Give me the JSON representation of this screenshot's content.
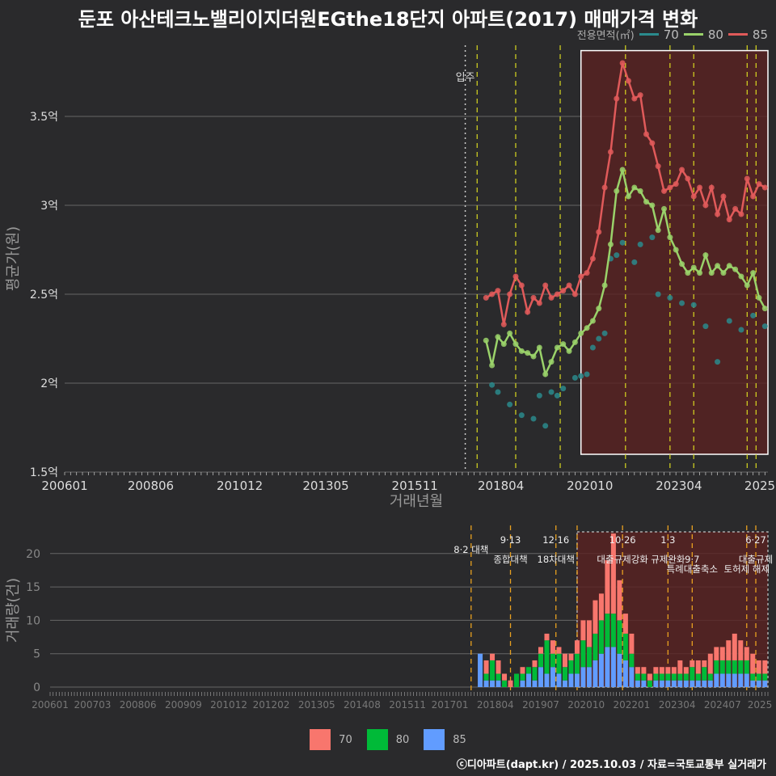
{
  "title": "둔포 아산테크노밸리이지더원EGthe18단지 아파트(2017) 매매가격 변화",
  "credit": "ⓒ디아파트(dapt.kr) / 2025.10.03 / 자료=국토교통부 실거래가",
  "colors": {
    "s70": "#2a8a8c",
    "s80": "#9ad26a",
    "s85": "#e05a5a",
    "b70": "#f8766d",
    "b80": "#00ba38",
    "b85": "#619cff",
    "highlight": "#5a2222",
    "policy": "#d8d820",
    "policy_bottom": "#e8a020"
  },
  "chart_data": [
    {
      "type": "line",
      "title": "둔포 아산테크노밸리이지더원EGthe18단지 아파트(2017) 매매가격 변화",
      "xlabel": "거래년월",
      "ylabel": "평균가(원)",
      "legend_title": "전용면적(㎡)",
      "ylim": [
        1.5,
        3.9
      ],
      "x_ticks": [
        "200601",
        "200806",
        "201012",
        "201305",
        "201511",
        "201804",
        "202010",
        "202304",
        "2025"
      ],
      "y_ticks": [
        {
          "v": 1.5,
          "label": "1.5억"
        },
        {
          "v": 2.0,
          "label": "2억"
        },
        {
          "v": 2.5,
          "label": "2.5억"
        },
        {
          "v": 3.0,
          "label": "3억"
        },
        {
          "v": 3.5,
          "label": "3.5억"
        }
      ],
      "annotation": "입주",
      "series": [
        {
          "name": "70",
          "points": [
            [
              "2018-01",
              1.99
            ],
            [
              "2018-03",
              1.95
            ],
            [
              "2018-07",
              1.88
            ],
            [
              "2018-11",
              1.82
            ],
            [
              "2019-03",
              1.8
            ],
            [
              "2019-05",
              1.93
            ],
            [
              "2019-07",
              1.76
            ],
            [
              "2019-09",
              1.95
            ],
            [
              "2019-11",
              1.93
            ],
            [
              "2020-01",
              1.97
            ],
            [
              "2020-05",
              2.03
            ],
            [
              "2020-07",
              2.04
            ],
            [
              "2020-09",
              2.05
            ],
            [
              "2020-11",
              2.2
            ],
            [
              "2021-01",
              2.25
            ],
            [
              "2021-03",
              2.28
            ],
            [
              "2021-05",
              2.7
            ],
            [
              "2021-07",
              2.72
            ],
            [
              "2021-09",
              2.79
            ],
            [
              "2022-01",
              2.68
            ],
            [
              "2022-03",
              2.78
            ],
            [
              "2022-07",
              2.82
            ],
            [
              "2022-09",
              2.5
            ],
            [
              "2023-01",
              2.48
            ],
            [
              "2023-05",
              2.45
            ],
            [
              "2023-09",
              2.44
            ],
            [
              "2024-01",
              2.32
            ],
            [
              "2024-05",
              2.12
            ],
            [
              "2024-09",
              2.35
            ],
            [
              "2025-01",
              2.3
            ],
            [
              "2025-05",
              2.38
            ],
            [
              "2025-09",
              2.32
            ]
          ]
        },
        {
          "name": "80",
          "points": [
            [
              "2017-11",
              2.24
            ],
            [
              "2018-01",
              2.1
            ],
            [
              "2018-03",
              2.26
            ],
            [
              "2018-05",
              2.22
            ],
            [
              "2018-07",
              2.28
            ],
            [
              "2018-09",
              2.22
            ],
            [
              "2018-11",
              2.18
            ],
            [
              "2019-01",
              2.17
            ],
            [
              "2019-03",
              2.15
            ],
            [
              "2019-05",
              2.2
            ],
            [
              "2019-07",
              2.05
            ],
            [
              "2019-09",
              2.12
            ],
            [
              "2019-11",
              2.2
            ],
            [
              "2020-01",
              2.22
            ],
            [
              "2020-03",
              2.18
            ],
            [
              "2020-05",
              2.23
            ],
            [
              "2020-07",
              2.28
            ],
            [
              "2020-09",
              2.31
            ],
            [
              "2020-11",
              2.35
            ],
            [
              "2021-01",
              2.42
            ],
            [
              "2021-03",
              2.55
            ],
            [
              "2021-05",
              2.78
            ],
            [
              "2021-07",
              3.08
            ],
            [
              "2021-09",
              3.2
            ],
            [
              "2021-11",
              3.05
            ],
            [
              "2022-01",
              3.1
            ],
            [
              "2022-03",
              3.08
            ],
            [
              "2022-05",
              3.02
            ],
            [
              "2022-07",
              3.0
            ],
            [
              "2022-09",
              2.86
            ],
            [
              "2022-11",
              2.98
            ],
            [
              "2023-01",
              2.82
            ],
            [
              "2023-03",
              2.75
            ],
            [
              "2023-05",
              2.67
            ],
            [
              "2023-07",
              2.62
            ],
            [
              "2023-09",
              2.65
            ],
            [
              "2023-11",
              2.62
            ],
            [
              "2024-01",
              2.72
            ],
            [
              "2024-03",
              2.62
            ],
            [
              "2024-05",
              2.66
            ],
            [
              "2024-07",
              2.62
            ],
            [
              "2024-09",
              2.66
            ],
            [
              "2024-11",
              2.64
            ],
            [
              "2025-01",
              2.6
            ],
            [
              "2025-03",
              2.55
            ],
            [
              "2025-05",
              2.62
            ],
            [
              "2025-07",
              2.48
            ],
            [
              "2025-09",
              2.42
            ]
          ]
        },
        {
          "name": "85",
          "points": [
            [
              "2017-11",
              2.48
            ],
            [
              "2018-01",
              2.5
            ],
            [
              "2018-03",
              2.52
            ],
            [
              "2018-05",
              2.33
            ],
            [
              "2018-07",
              2.5
            ],
            [
              "2018-09",
              2.6
            ],
            [
              "2018-11",
              2.55
            ],
            [
              "2019-01",
              2.4
            ],
            [
              "2019-03",
              2.48
            ],
            [
              "2019-05",
              2.45
            ],
            [
              "2019-07",
              2.55
            ],
            [
              "2019-09",
              2.48
            ],
            [
              "2019-11",
              2.5
            ],
            [
              "2020-01",
              2.52
            ],
            [
              "2020-03",
              2.55
            ],
            [
              "2020-05",
              2.5
            ],
            [
              "2020-07",
              2.6
            ],
            [
              "2020-09",
              2.62
            ],
            [
              "2020-11",
              2.7
            ],
            [
              "2021-01",
              2.85
            ],
            [
              "2021-03",
              3.1
            ],
            [
              "2021-05",
              3.3
            ],
            [
              "2021-07",
              3.6
            ],
            [
              "2021-09",
              3.8
            ],
            [
              "2021-11",
              3.7
            ],
            [
              "2022-01",
              3.6
            ],
            [
              "2022-03",
              3.62
            ],
            [
              "2022-05",
              3.4
            ],
            [
              "2022-07",
              3.35
            ],
            [
              "2022-09",
              3.22
            ],
            [
              "2022-11",
              3.08
            ],
            [
              "2023-01",
              3.1
            ],
            [
              "2023-03",
              3.12
            ],
            [
              "2023-05",
              3.2
            ],
            [
              "2023-07",
              3.15
            ],
            [
              "2023-09",
              3.05
            ],
            [
              "2023-11",
              3.1
            ],
            [
              "2024-01",
              3.0
            ],
            [
              "2024-03",
              3.1
            ],
            [
              "2024-05",
              2.95
            ],
            [
              "2024-07",
              3.05
            ],
            [
              "2024-09",
              2.92
            ],
            [
              "2024-11",
              2.98
            ],
            [
              "2025-01",
              2.95
            ],
            [
              "2025-03",
              3.15
            ],
            [
              "2025-05",
              3.05
            ],
            [
              "2025-07",
              3.12
            ],
            [
              "2025-09",
              3.1
            ]
          ]
        }
      ]
    },
    {
      "type": "bar",
      "ylabel": "거래량(건)",
      "ylim": [
        0,
        23
      ],
      "x_ticks": [
        "200601",
        "200703",
        "200806",
        "200909",
        "201012",
        "201202",
        "201305",
        "201408",
        "201511",
        "201701",
        "201804",
        "201907",
        "202010",
        "202201",
        "202304",
        "202407",
        "2025"
      ],
      "y_ticks": [
        0,
        5,
        10,
        15,
        20
      ],
      "legend": [
        "70",
        "80",
        "85"
      ],
      "policy_labels": [
        {
          "date": "2017-08",
          "row": 1,
          "text": "8·2 대책"
        },
        {
          "date": "2018-09",
          "row": 0,
          "text": "9·13"
        },
        {
          "date": "2018-09",
          "row": 2,
          "text": "종합대책"
        },
        {
          "date": "2019-12",
          "row": 0,
          "text": "12·16"
        },
        {
          "date": "2019-12",
          "row": 2,
          "text": "18차대책"
        },
        {
          "date": "2021-10",
          "row": 0,
          "text": "10·26"
        },
        {
          "date": "2021-10",
          "row": 2,
          "text": "대출규제강화"
        },
        {
          "date": "2023-01",
          "row": 0,
          "text": "1·3"
        },
        {
          "date": "2023-01",
          "row": 2,
          "text": "규제완화"
        },
        {
          "date": "2023-09",
          "row": 2,
          "text": "9·7"
        },
        {
          "date": "2023-09",
          "row": 3,
          "text": "특례대출축소"
        },
        {
          "date": "2025-03",
          "row": 3,
          "text": "토허제 해제"
        },
        {
          "date": "2025-06",
          "row": 0,
          "text": "6·27"
        },
        {
          "date": "2025-06",
          "row": 2,
          "text": "대출규제"
        }
      ],
      "bars": [
        [
          "2017-11",
          0,
          0,
          5
        ],
        [
          "2018-01",
          2,
          1,
          1
        ],
        [
          "2018-03",
          1,
          3,
          1
        ],
        [
          "2018-05",
          2,
          1,
          1
        ],
        [
          "2018-07",
          1,
          1,
          0
        ],
        [
          "2018-09",
          1,
          0,
          0
        ],
        [
          "2018-11",
          0,
          2,
          0
        ],
        [
          "2019-01",
          1,
          1,
          1
        ],
        [
          "2019-03",
          0,
          1,
          2
        ],
        [
          "2019-05",
          1,
          2,
          1
        ],
        [
          "2019-07",
          1,
          2,
          3
        ],
        [
          "2019-09",
          1,
          5,
          2
        ],
        [
          "2019-11",
          2,
          2,
          3
        ],
        [
          "2020-01",
          1,
          3,
          2
        ],
        [
          "2020-03",
          2,
          2,
          1
        ],
        [
          "2020-05",
          1,
          2,
          2
        ],
        [
          "2020-07",
          2,
          3,
          2
        ],
        [
          "2020-09",
          3,
          4,
          3
        ],
        [
          "2020-11",
          4,
          3,
          3
        ],
        [
          "2021-01",
          5,
          4,
          4
        ],
        [
          "2021-03",
          4,
          5,
          5
        ],
        [
          "2021-05",
          8,
          5,
          6
        ],
        [
          "2021-07",
          12,
          5,
          6
        ],
        [
          "2021-09",
          6,
          5,
          5
        ],
        [
          "2021-11",
          3,
          4,
          4
        ],
        [
          "2022-01",
          3,
          2,
          3
        ],
        [
          "2022-03",
          1,
          1,
          1
        ],
        [
          "2022-05",
          1,
          1,
          1
        ],
        [
          "2022-07",
          1,
          1,
          0
        ],
        [
          "2022-09",
          1,
          1,
          1
        ],
        [
          "2022-11",
          1,
          1,
          1
        ],
        [
          "2023-01",
          1,
          1,
          1
        ],
        [
          "2023-03",
          1,
          1,
          1
        ],
        [
          "2023-05",
          2,
          1,
          1
        ],
        [
          "2023-07",
          1,
          1,
          1
        ],
        [
          "2023-09",
          1,
          2,
          1
        ],
        [
          "2023-11",
          2,
          1,
          1
        ],
        [
          "2024-01",
          1,
          2,
          1
        ],
        [
          "2024-03",
          3,
          1,
          1
        ],
        [
          "2024-05",
          2,
          2,
          2
        ],
        [
          "2024-07",
          2,
          2,
          2
        ],
        [
          "2024-09",
          3,
          2,
          2
        ],
        [
          "2024-11",
          4,
          2,
          2
        ],
        [
          "2025-01",
          3,
          2,
          2
        ],
        [
          "2025-03",
          2,
          2,
          2
        ],
        [
          "2025-05",
          3,
          1,
          1
        ],
        [
          "2025-07",
          2,
          1,
          1
        ],
        [
          "2025-09",
          2,
          1,
          1
        ]
      ]
    }
  ]
}
